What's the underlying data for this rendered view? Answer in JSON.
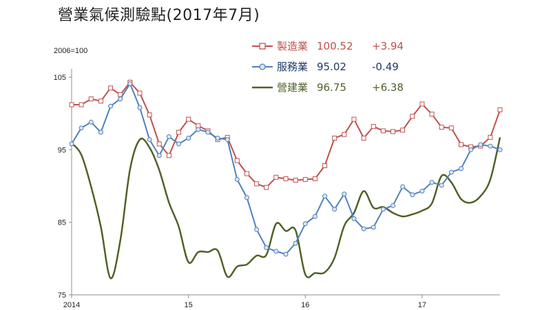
{
  "title": "營業氣候測驗點(2017年7月)",
  "unit_label": "2006=100",
  "legend": [
    {
      "name": "製造業",
      "value": "100.52",
      "change": "+3.94",
      "color": "#c0504d"
    },
    {
      "name": "服務業",
      "value": "95.02",
      "change": "-0.49",
      "color": "#4f81bd"
    },
    {
      "name": "營建業",
      "value": "96.75",
      "change": "+6.38",
      "color": "#4f6228"
    }
  ],
  "chart_data": {
    "type": "line",
    "x_start": "2014-01",
    "x_end": "2017-07",
    "x_ticks": [
      {
        "month": "2014-01",
        "label": "2014"
      },
      {
        "month": "2015-01",
        "label": "15"
      },
      {
        "month": "2016-01",
        "label": "16"
      },
      {
        "month": "2017-01",
        "label": "17"
      }
    ],
    "ylim": [
      75,
      105
    ],
    "y_ticks": [
      75,
      85,
      95,
      105
    ],
    "y_grid": false,
    "legend_position": "top-right",
    "series": [
      {
        "name": "製造業",
        "color": "#c0504d",
        "marker": "square",
        "smooth": false,
        "values": [
          101.2,
          101.2,
          102.0,
          101.7,
          103.5,
          102.6,
          104.3,
          102.8,
          99.8,
          95.8,
          94.2,
          97.4,
          99.2,
          98.3,
          97.6,
          96.4,
          96.7,
          93.5,
          91.7,
          90.3,
          89.8,
          91.2,
          91.0,
          90.8,
          90.9,
          91.0,
          92.8,
          96.6,
          97.1,
          99.2,
          96.6,
          98.2,
          97.6,
          97.5,
          97.7,
          99.6,
          101.3,
          99.9,
          98.1,
          98.0,
          95.7,
          95.4,
          95.5,
          96.7,
          100.5
        ]
      },
      {
        "name": "服務業",
        "color": "#4f81bd",
        "marker": "circle",
        "smooth": false,
        "values": [
          95.8,
          98.0,
          98.8,
          97.4,
          101.0,
          102.0,
          104.1,
          100.8,
          96.4,
          94.2,
          96.8,
          95.8,
          96.6,
          97.8,
          97.4,
          96.6,
          96.4,
          90.9,
          88.4,
          84.0,
          81.5,
          81.0,
          80.6,
          82.1,
          84.8,
          85.8,
          88.6,
          86.8,
          88.9,
          85.5,
          84.1,
          84.3,
          86.8,
          87.3,
          89.9,
          88.8,
          89.3,
          90.5,
          90.1,
          91.9,
          92.4,
          95.0,
          95.7,
          95.5,
          95.0
        ]
      },
      {
        "name": "營建業",
        "color": "#4f6228",
        "marker": "none",
        "smooth": true,
        "values": [
          95.9,
          94.3,
          89.9,
          84.4,
          77.3,
          82.5,
          92.3,
          96.4,
          95.3,
          92.2,
          87.7,
          84.4,
          79.5,
          80.9,
          80.9,
          81.1,
          77.5,
          78.9,
          79.2,
          80.4,
          80.5,
          84.8,
          83.8,
          83.9,
          77.8,
          78.0,
          78.1,
          80.1,
          84.5,
          86.3,
          89.3,
          87.0,
          87.1,
          86.3,
          85.8,
          86.1,
          86.6,
          87.6,
          91.4,
          90.5,
          88.2,
          87.7,
          88.6,
          90.9,
          96.7
        ]
      }
    ]
  }
}
